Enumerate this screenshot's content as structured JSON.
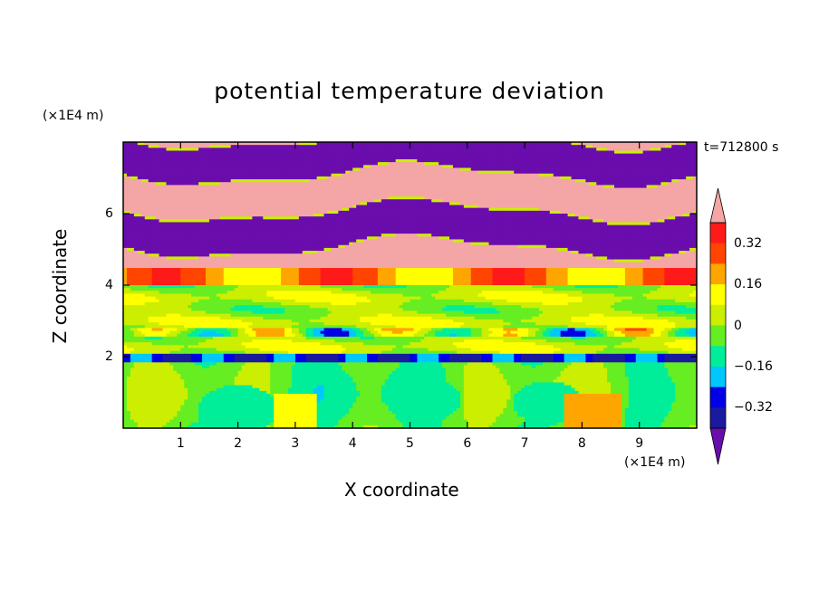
{
  "chart_data": {
    "type": "heatmap",
    "title": "potential temperature deviation",
    "xlabel": "X coordinate",
    "ylabel": "Z coordinate",
    "x_unit": "(×1E4 m)",
    "y_unit": "(×1E4 m)",
    "time_label": "t=712800 s",
    "xlim": [
      0,
      10
    ],
    "ylim": [
      0,
      8
    ],
    "x_ticks": [
      "1",
      "2",
      "3",
      "4",
      "5",
      "6",
      "7",
      "8",
      "9"
    ],
    "y_ticks": [
      "2",
      "4",
      "6"
    ],
    "colorbar": {
      "tick_labels": [
        "0.32",
        "0.16",
        "0",
        "−0.16",
        "−0.32"
      ],
      "tick_values": [
        0.32,
        0.16,
        0,
        -0.16,
        -0.32
      ],
      "levels": [
        -0.4,
        -0.32,
        -0.24,
        -0.16,
        -0.08,
        0,
        0.08,
        0.16,
        0.24,
        0.32,
        0.4
      ],
      "colors": [
        "#6a0dad",
        "#1a1a9e",
        "#0000e6",
        "#00c8ff",
        "#00ee99",
        "#66ee22",
        "#ccee00",
        "#ffff00",
        "#ffa500",
        "#ff4500",
        "#ff1a1a",
        "#f4a6a6"
      ],
      "extend": "both"
    },
    "layers": [
      {
        "z": [
          0.0,
          1.8
        ],
        "description": "greenish layer with cyan and yellow patches",
        "dominant": "green"
      },
      {
        "z": [
          1.8,
          2.1
        ],
        "description": "thin blue/purple band",
        "dominant": "blue"
      },
      {
        "z": [
          2.1,
          4.0
        ],
        "description": "green and cyan mixed layer",
        "dominant": "green"
      },
      {
        "z": [
          4.0,
          4.5
        ],
        "description": "orange/red band",
        "dominant": "red"
      },
      {
        "z": [
          4.5,
          8.0
        ],
        "description": "alternating purple and pink stripes",
        "dominant": "purple/pink"
      }
    ]
  }
}
